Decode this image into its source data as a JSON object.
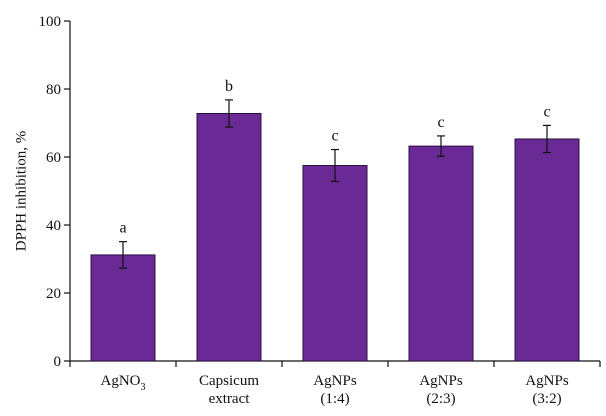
{
  "chart_data": {
    "type": "bar",
    "title": "",
    "ylabel": "DPPH inhibition, %",
    "xlabel": "",
    "ylim": [
      0,
      100
    ],
    "yticks": [
      0,
      20,
      40,
      60,
      80,
      100
    ],
    "grid": false,
    "categories": [
      {
        "lines": [
          "AgNO",
          "3"
        ],
        "subscript_last": true
      },
      {
        "lines": [
          "Capsicum",
          "extract"
        ]
      },
      {
        "lines": [
          "AgNPs",
          "(1:4)"
        ]
      },
      {
        "lines": [
          "AgNPs",
          "(2:3)"
        ]
      },
      {
        "lines": [
          "AgNPs",
          "(3:2)"
        ]
      }
    ],
    "values": [
      31.2,
      72.8,
      57.5,
      63.2,
      65.3
    ],
    "errors": [
      3.9,
      4.0,
      4.7,
      3.0,
      4.0
    ],
    "significance_letters": [
      "a",
      "b",
      "c",
      "c",
      "c"
    ],
    "bar_color": "#6a2a96",
    "bar_stroke": "#2a0f40"
  }
}
